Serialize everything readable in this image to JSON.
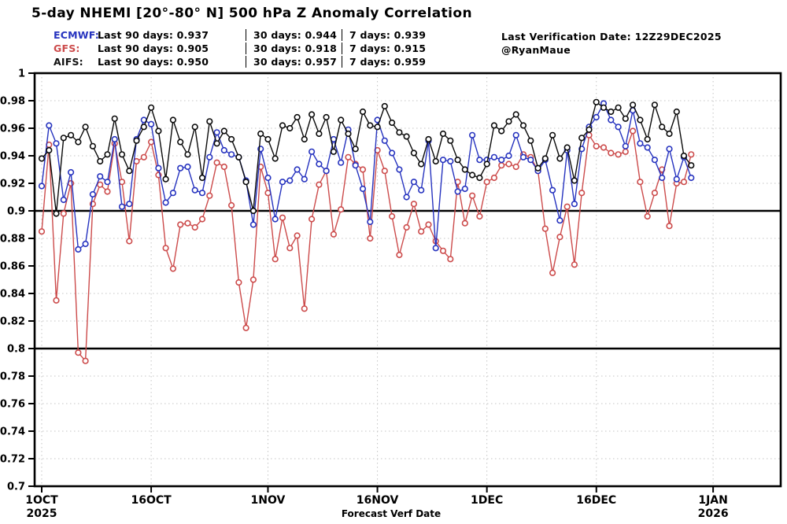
{
  "title": "5-day NHEMI [20°-80° N] 500 hPa Z Anomaly Correlation",
  "annotations": {
    "verification": "Last Verification Date: 12Z29DEC2025",
    "credit": "@RyanMaue"
  },
  "legend": {
    "rows": [
      {
        "model": "ECMWF:",
        "color": "#2633bf",
        "stat90": "Last 90 days: 0.937",
        "stat30": "30 days: 0.944",
        "stat7": "7 days: 0.939"
      },
      {
        "model": "GFS:",
        "color": "#cc4b4b",
        "stat90": "Last 90 days: 0.905",
        "stat30": "30 days: 0.918",
        "stat7": "7 days: 0.915"
      },
      {
        "model": "AIFS:",
        "color": "#111111",
        "stat90": "Last 90 days: 0.950",
        "stat30": "30 days: 0.957",
        "stat7": "7 days: 0.959"
      }
    ]
  },
  "chart_data": {
    "type": "line",
    "title": "5-day NHEMI [20°-80° N] 500 hPa Z Anomaly Correlation",
    "xlabel": "Forecast Verf Date",
    "ylabel": "",
    "ylim": [
      0.7,
      1.0
    ],
    "ytick_step": 0.02,
    "ytick_labels": [
      "1",
      "0.98",
      "0.96",
      "0.94",
      "0.92",
      "0.9",
      "0.88",
      "0.86",
      "0.84",
      "0.82",
      "0.8",
      "0.78",
      "0.76",
      "0.74",
      "0.72",
      "0.7"
    ],
    "reference_lines": [
      0.9,
      0.8
    ],
    "grid": true,
    "legend_position": "top-left",
    "x_unit": "daily, 1 Oct 2025 through 29 Dec 2025",
    "xticks": [
      {
        "label": "1OCT",
        "year": "2025",
        "day": 0
      },
      {
        "label": "16OCT",
        "year": "",
        "day": 15
      },
      {
        "label": "1NOV",
        "year": "",
        "day": 31
      },
      {
        "label": "16NOV",
        "year": "",
        "day": 46
      },
      {
        "label": "1DEC",
        "year": "",
        "day": 61
      },
      {
        "label": "16DEC",
        "year": "",
        "day": 76
      },
      {
        "label": "1JAN",
        "year": "2026",
        "day": 92
      }
    ],
    "series": [
      {
        "name": "GFS",
        "color": "#cc4b4b",
        "values": [
          0.885,
          0.948,
          0.835,
          0.898,
          0.92,
          0.797,
          0.791,
          0.905,
          0.919,
          0.914,
          0.949,
          0.921,
          0.878,
          0.936,
          0.939,
          0.95,
          0.926,
          0.873,
          0.858,
          0.89,
          0.891,
          0.888,
          0.894,
          0.911,
          0.935,
          0.932,
          0.904,
          0.848,
          0.815,
          0.85,
          0.932,
          0.913,
          0.865,
          0.895,
          0.873,
          0.882,
          0.829,
          0.894,
          0.919,
          0.929,
          0.883,
          0.901,
          0.939,
          0.934,
          0.93,
          0.88,
          0.944,
          0.929,
          0.896,
          0.868,
          0.888,
          0.905,
          0.885,
          0.89,
          0.878,
          0.871,
          0.865,
          0.921,
          0.891,
          0.911,
          0.896,
          0.921,
          0.924,
          0.933,
          0.934,
          0.932,
          0.941,
          0.939,
          0.929,
          0.887,
          0.855,
          0.881,
          0.903,
          0.861,
          0.913,
          0.955,
          0.947,
          0.946,
          0.942,
          0.941,
          0.943,
          0.958,
          0.921,
          0.896,
          0.913,
          0.93,
          0.889,
          0.92,
          0.921,
          0.941
        ]
      },
      {
        "name": "ECMWF",
        "color": "#2633bf",
        "values": [
          0.918,
          0.962,
          0.949,
          0.908,
          0.928,
          0.872,
          0.876,
          0.912,
          0.925,
          0.921,
          0.952,
          0.903,
          0.905,
          0.952,
          0.966,
          0.963,
          0.931,
          0.906,
          0.913,
          0.931,
          0.932,
          0.915,
          0.913,
          0.939,
          0.957,
          0.944,
          0.941,
          0.939,
          0.922,
          0.89,
          0.945,
          0.924,
          0.894,
          0.921,
          0.922,
          0.93,
          0.923,
          0.943,
          0.934,
          0.929,
          0.952,
          0.935,
          0.959,
          0.933,
          0.916,
          0.892,
          0.966,
          0.951,
          0.942,
          0.93,
          0.91,
          0.921,
          0.915,
          0.951,
          0.873,
          0.937,
          0.936,
          0.914,
          0.916,
          0.955,
          0.937,
          0.937,
          0.939,
          0.937,
          0.94,
          0.955,
          0.939,
          0.937,
          0.929,
          0.937,
          0.915,
          0.893,
          0.944,
          0.905,
          0.945,
          0.961,
          0.968,
          0.978,
          0.966,
          0.961,
          0.947,
          0.973,
          0.949,
          0.946,
          0.937,
          0.924,
          0.945,
          0.923,
          0.939,
          0.924
        ]
      },
      {
        "name": "AIFS",
        "color": "#0a0a0a",
        "values": [
          0.938,
          0.944,
          0.898,
          0.953,
          0.955,
          0.95,
          0.961,
          0.947,
          0.936,
          0.941,
          0.967,
          0.941,
          0.929,
          0.951,
          0.961,
          0.975,
          0.958,
          0.923,
          0.966,
          0.95,
          0.941,
          0.961,
          0.924,
          0.965,
          0.949,
          0.958,
          0.952,
          0.939,
          0.921,
          0.9,
          0.956,
          0.952,
          0.938,
          0.962,
          0.96,
          0.968,
          0.952,
          0.97,
          0.956,
          0.968,
          0.943,
          0.966,
          0.956,
          0.945,
          0.972,
          0.962,
          0.961,
          0.976,
          0.964,
          0.957,
          0.954,
          0.942,
          0.934,
          0.952,
          0.936,
          0.956,
          0.951,
          0.937,
          0.93,
          0.926,
          0.924,
          0.934,
          0.962,
          0.958,
          0.965,
          0.97,
          0.962,
          0.951,
          0.931,
          0.938,
          0.955,
          0.938,
          0.946,
          0.922,
          0.953,
          0.959,
          0.979,
          0.975,
          0.972,
          0.975,
          0.967,
          0.977,
          0.966,
          0.952,
          0.977,
          0.961,
          0.956,
          0.972,
          0.94,
          0.933
        ]
      }
    ]
  }
}
